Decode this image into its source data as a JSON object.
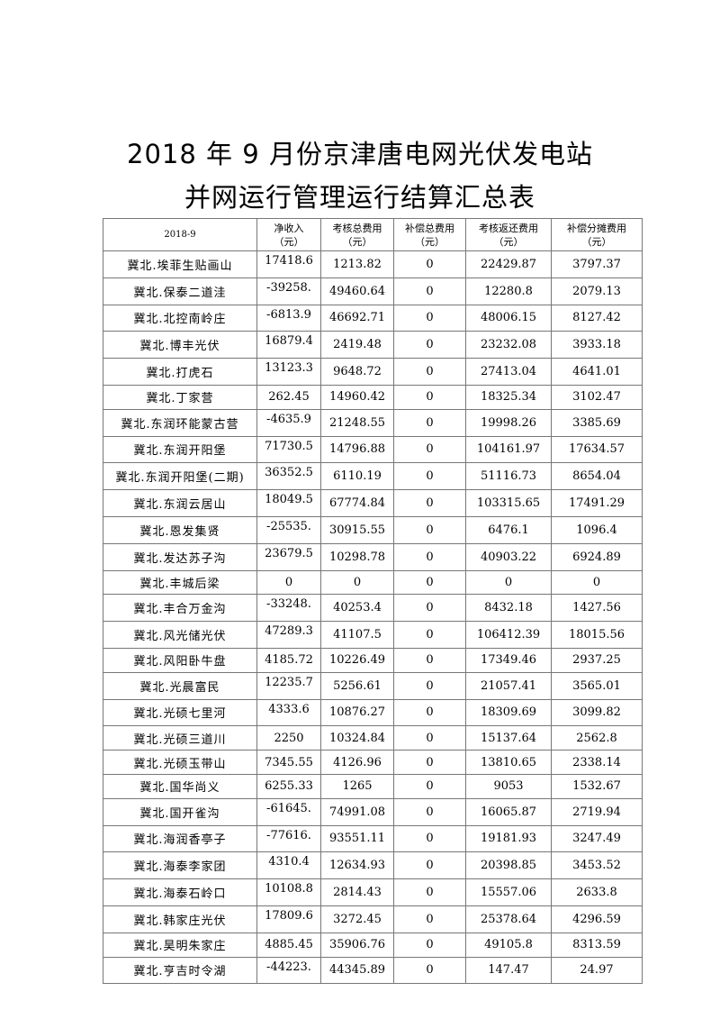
{
  "document": {
    "title_line1": "2018 年 9 月份京津唐电网光伏发电站",
    "title_line2": "并网运行管理运行结算汇总表"
  },
  "table": {
    "headers": [
      {
        "label": "2018-9",
        "unit": ""
      },
      {
        "label": "净收入",
        "unit": "（元）"
      },
      {
        "label": "考核总费用",
        "unit": "（元）"
      },
      {
        "label": "补偿总费用",
        "unit": "（元）"
      },
      {
        "label": "考核返还费用",
        "unit": "（元）"
      },
      {
        "label": "补偿分摊费用",
        "unit": "（元）"
      }
    ],
    "rows": [
      [
        "冀北.埃菲生贴画山",
        "17418.6",
        "1213.82",
        "0",
        "22429.87",
        "3797.37"
      ],
      [
        "冀北.保泰二道洼",
        "-39258.",
        "49460.64",
        "0",
        "12280.8",
        "2079.13"
      ],
      [
        "冀北.北控南岭庄",
        "-6813.9",
        "46692.71",
        "0",
        "48006.15",
        "8127.42"
      ],
      [
        "冀北.博丰光伏",
        "16879.4",
        "2419.48",
        "0",
        "23232.08",
        "3933.18"
      ],
      [
        "冀北.打虎石",
        "13123.3",
        "9648.72",
        "0",
        "27413.04",
        "4641.01"
      ],
      [
        "冀北.丁家营",
        "262.45",
        "14960.42",
        "0",
        "18325.34",
        "3102.47"
      ],
      [
        "冀北.东润环能蒙古营",
        "-4635.9",
        "21248.55",
        "0",
        "19998.26",
        "3385.69"
      ],
      [
        "冀北.东润开阳堡",
        "71730.5",
        "14796.88",
        "0",
        "104161.97",
        "17634.57"
      ],
      [
        "冀北.东润开阳堡(二期)",
        "36352.5",
        "6110.19",
        "0",
        "51116.73",
        "8654.04"
      ],
      [
        "冀北.东润云居山",
        "18049.5",
        "67774.84",
        "0",
        "103315.65",
        "17491.29"
      ],
      [
        "冀北.恩发集贤",
        "-25535.",
        "30915.55",
        "0",
        "6476.1",
        "1096.4"
      ],
      [
        "冀北.发达苏子沟",
        "23679.5",
        "10298.78",
        "0",
        "40903.22",
        "6924.89"
      ],
      [
        "冀北.丰城后梁",
        "0",
        "0",
        "0",
        "0",
        "0"
      ],
      [
        "冀北.丰合万金沟",
        "-33248.",
        "40253.4",
        "0",
        "8432.18",
        "1427.56"
      ],
      [
        "冀北.风光储光伏",
        "47289.3",
        "41107.5",
        "0",
        "106412.39",
        "18015.56"
      ],
      [
        "冀北.风阳卧牛盘",
        "4185.72",
        "10226.49",
        "0",
        "17349.46",
        "2937.25"
      ],
      [
        "冀北.光晨富民",
        "12235.7",
        "5256.61",
        "0",
        "21057.41",
        "3565.01"
      ],
      [
        "冀北.光硕七里河",
        "4333.6",
        "10876.27",
        "0",
        "18309.69",
        "3099.82"
      ],
      [
        "冀北.光硕三道川",
        "2250",
        "10324.84",
        "0",
        "15137.64",
        "2562.8"
      ],
      [
        "冀北.光硕玉带山",
        "7345.55",
        "4126.96",
        "0",
        "13810.65",
        "2338.14"
      ],
      [
        "冀北.国华尚义",
        "6255.33",
        "1265",
        "0",
        "9053",
        "1532.67"
      ],
      [
        "冀北.国开雀沟",
        "-61645.",
        "74991.08",
        "0",
        "16065.87",
        "2719.94"
      ],
      [
        "冀北.海润香亭子",
        "-77616.",
        "93551.11",
        "0",
        "19181.93",
        "3247.49"
      ],
      [
        "冀北.海泰李家团",
        "4310.4",
        "12634.93",
        "0",
        "20398.85",
        "3453.52"
      ],
      [
        "冀北.海泰石岭口",
        "10108.8",
        "2814.43",
        "0",
        "15557.06",
        "2633.8"
      ],
      [
        "冀北.韩家庄光伏",
        "17809.6",
        "3272.45",
        "0",
        "25378.64",
        "4296.59"
      ],
      [
        "冀北.昊明朱家庄",
        "4885.45",
        "35906.76",
        "0",
        "49105.8",
        "8313.59"
      ],
      [
        "冀北.亨吉时令湖",
        "-44223.",
        "44345.89",
        "0",
        "147.47",
        "24.97"
      ]
    ]
  }
}
